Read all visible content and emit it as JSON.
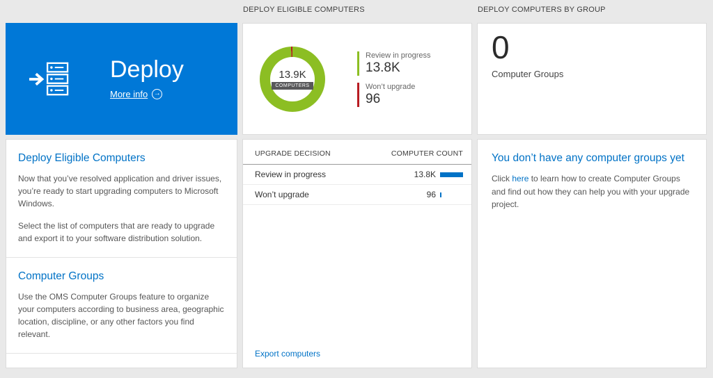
{
  "colors": {
    "accent_blue": "#0078d7",
    "link_blue": "#0072c6",
    "bar_blue": "#0072c6",
    "green": "#8cbe23",
    "red": "#b81c22"
  },
  "left_column": {
    "tile": {
      "title": "Deploy",
      "more_info_label": "More info"
    },
    "sections": [
      {
        "heading": "Deploy Eligible Computers",
        "paragraphs": [
          "Now that you’ve resolved application and driver issues, you’re ready to start upgrading computers to Microsoft Windows.",
          "Select the list of computers that are ready to upgrade and export it to your software distribution solution."
        ]
      },
      {
        "heading": "Computer Groups",
        "paragraphs": [
          "Use the OMS Computer Groups feature to organize your computers according to business area, geographic location, discipline, or any other factors you find relevant."
        ]
      }
    ]
  },
  "middle_column": {
    "header": "DEPLOY ELIGIBLE COMPUTERS",
    "donut": {
      "center_value": "13.9K",
      "center_label": "COMPUTERS",
      "segments": [
        {
          "name": "Review in progress",
          "value": 13800,
          "color": "#8cbe23"
        },
        {
          "name": "Won’t upgrade",
          "value": 96,
          "color": "#b81c22"
        }
      ]
    },
    "legend": [
      {
        "label": "Review in progress",
        "value": "13.8K",
        "color": "#8cbe23"
      },
      {
        "label": "Won’t upgrade",
        "value": "96",
        "color": "#b81c22"
      }
    ],
    "table": {
      "columns": [
        "UPGRADE DECISION",
        "COMPUTER COUNT"
      ],
      "rows": [
        {
          "label": "Review in progress",
          "display": "13.8K",
          "count": 13800
        },
        {
          "label": "Won’t upgrade",
          "display": "96",
          "count": 96
        }
      ]
    },
    "export_link": "Export computers"
  },
  "right_column": {
    "header": "DEPLOY COMPUTERS BY GROUP",
    "tile": {
      "count": "0",
      "label": "Computer Groups"
    },
    "panel": {
      "heading": "You don’t have any computer groups yet",
      "text_before_link": "Click ",
      "link_label": "here",
      "text_after_link": " to learn how to create Computer Groups and find out how they can help you with your upgrade project."
    }
  }
}
